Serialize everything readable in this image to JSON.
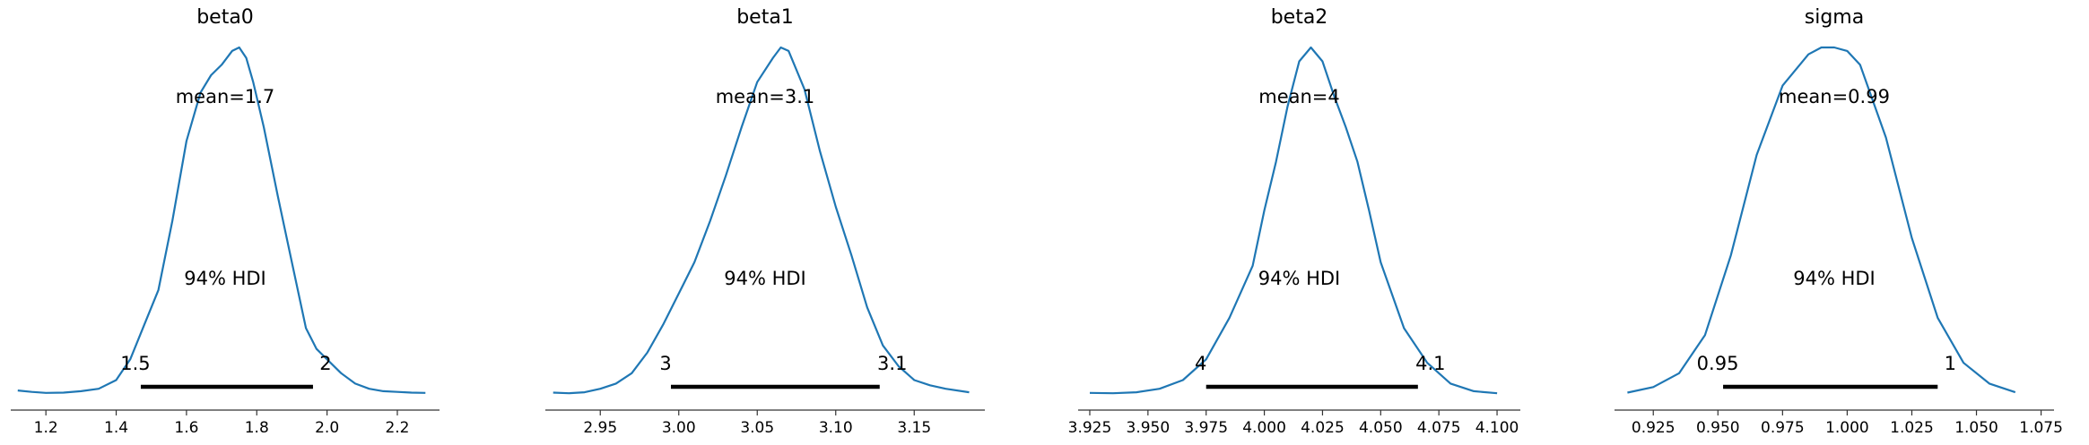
{
  "colors": {
    "density": "#1f77b4",
    "hdi": "#000000",
    "axis": "#333333"
  },
  "chart_data": [
    {
      "type": "line",
      "title": "beta0",
      "mean_label": "mean=1.7",
      "hdi_label": "94% HDI",
      "hdi": {
        "low": 1.47,
        "high": 1.96,
        "low_label": "1.5",
        "high_label": "2"
      },
      "xlim": [
        1.1,
        2.32
      ],
      "xticks": [
        1.2,
        1.4,
        1.6,
        1.8,
        2.0,
        2.2
      ],
      "xtick_labels": [
        "1.2",
        "1.4",
        "1.6",
        "1.8",
        "2.0",
        "2.2"
      ],
      "density": {
        "x": [
          1.12,
          1.16,
          1.2,
          1.25,
          1.3,
          1.35,
          1.4,
          1.44,
          1.48,
          1.52,
          1.56,
          1.6,
          1.64,
          1.67,
          1.7,
          1.73,
          1.75,
          1.77,
          1.79,
          1.82,
          1.86,
          1.9,
          1.94,
          1.97,
          2.0,
          2.04,
          2.08,
          2.12,
          2.16,
          2.2,
          2.24,
          2.28
        ],
        "y": [
          0.01,
          0.006,
          0.003,
          0.004,
          0.008,
          0.015,
          0.04,
          0.1,
          0.2,
          0.3,
          0.5,
          0.73,
          0.87,
          0.92,
          0.95,
          0.99,
          1.0,
          0.97,
          0.9,
          0.77,
          0.57,
          0.38,
          0.19,
          0.13,
          0.1,
          0.06,
          0.03,
          0.015,
          0.008,
          0.006,
          0.004,
          0.003
        ]
      }
    },
    {
      "type": "line",
      "title": "beta1",
      "mean_label": "mean=3.1",
      "hdi_label": "94% HDI",
      "hdi": {
        "low": 2.995,
        "high": 3.128,
        "low_label": "3",
        "high_label": "3.1"
      },
      "xlim": [
        2.915,
        3.195
      ],
      "xticks": [
        2.95,
        3.0,
        3.05,
        3.1,
        3.15
      ],
      "xtick_labels": [
        "2.95",
        "3.00",
        "3.05",
        "3.10",
        "3.15"
      ],
      "density": {
        "x": [
          2.92,
          2.93,
          2.94,
          2.95,
          2.96,
          2.97,
          2.98,
          2.99,
          3.0,
          3.01,
          3.02,
          3.03,
          3.04,
          3.05,
          3.06,
          3.065,
          3.07,
          3.08,
          3.09,
          3.1,
          3.11,
          3.12,
          3.13,
          3.14,
          3.15,
          3.16,
          3.17,
          3.185
        ],
        "y": [
          0.004,
          0.002,
          0.005,
          0.015,
          0.03,
          0.06,
          0.12,
          0.2,
          0.29,
          0.38,
          0.5,
          0.63,
          0.77,
          0.9,
          0.97,
          1.0,
          0.99,
          0.88,
          0.7,
          0.54,
          0.4,
          0.25,
          0.14,
          0.08,
          0.04,
          0.025,
          0.015,
          0.005
        ]
      }
    },
    {
      "type": "line",
      "title": "beta2",
      "mean_label": "mean=4",
      "hdi_label": "94% HDI",
      "hdi": {
        "low": 3.975,
        "high": 4.066,
        "low_label": "4",
        "high_label": "4.1"
      },
      "xlim": [
        3.92,
        4.11
      ],
      "xticks": [
        3.925,
        3.95,
        3.975,
        4.0,
        4.025,
        4.05,
        4.075,
        4.1
      ],
      "xtick_labels": [
        "3.925",
        "3.950",
        "3.975",
        "4.000",
        "4.025",
        "4.050",
        "4.075",
        "4.100"
      ],
      "density": {
        "x": [
          3.925,
          3.935,
          3.945,
          3.955,
          3.965,
          3.975,
          3.985,
          3.995,
          4.0,
          4.005,
          4.01,
          4.015,
          4.02,
          4.025,
          4.03,
          4.035,
          4.04,
          4.045,
          4.05,
          4.06,
          4.07,
          4.08,
          4.09,
          4.1
        ],
        "y": [
          0.003,
          0.002,
          0.005,
          0.015,
          0.04,
          0.1,
          0.22,
          0.37,
          0.53,
          0.67,
          0.83,
          0.96,
          1.0,
          0.96,
          0.86,
          0.77,
          0.67,
          0.53,
          0.38,
          0.19,
          0.09,
          0.03,
          0.008,
          0.002
        ]
      }
    },
    {
      "type": "line",
      "title": "sigma",
      "mean_label": "mean=0.99",
      "hdi_label": "94% HDI",
      "hdi": {
        "low": 0.952,
        "high": 1.035,
        "low_label": "0.95",
        "high_label": "1"
      },
      "xlim": [
        0.91,
        1.08
      ],
      "xticks": [
        0.925,
        0.95,
        0.975,
        1.0,
        1.025,
        1.05,
        1.075
      ],
      "xtick_labels": [
        "0.925",
        "0.950",
        "0.975",
        "1.000",
        "1.025",
        "1.050",
        "1.075"
      ],
      "density": {
        "x": [
          0.915,
          0.925,
          0.935,
          0.945,
          0.955,
          0.965,
          0.975,
          0.985,
          0.99,
          0.995,
          1.0,
          1.005,
          1.015,
          1.025,
          1.035,
          1.045,
          1.055,
          1.065
        ],
        "y": [
          0.004,
          0.02,
          0.06,
          0.17,
          0.4,
          0.69,
          0.89,
          0.98,
          1.0,
          1.0,
          0.99,
          0.95,
          0.74,
          0.45,
          0.22,
          0.09,
          0.03,
          0.005
        ]
      }
    }
  ]
}
